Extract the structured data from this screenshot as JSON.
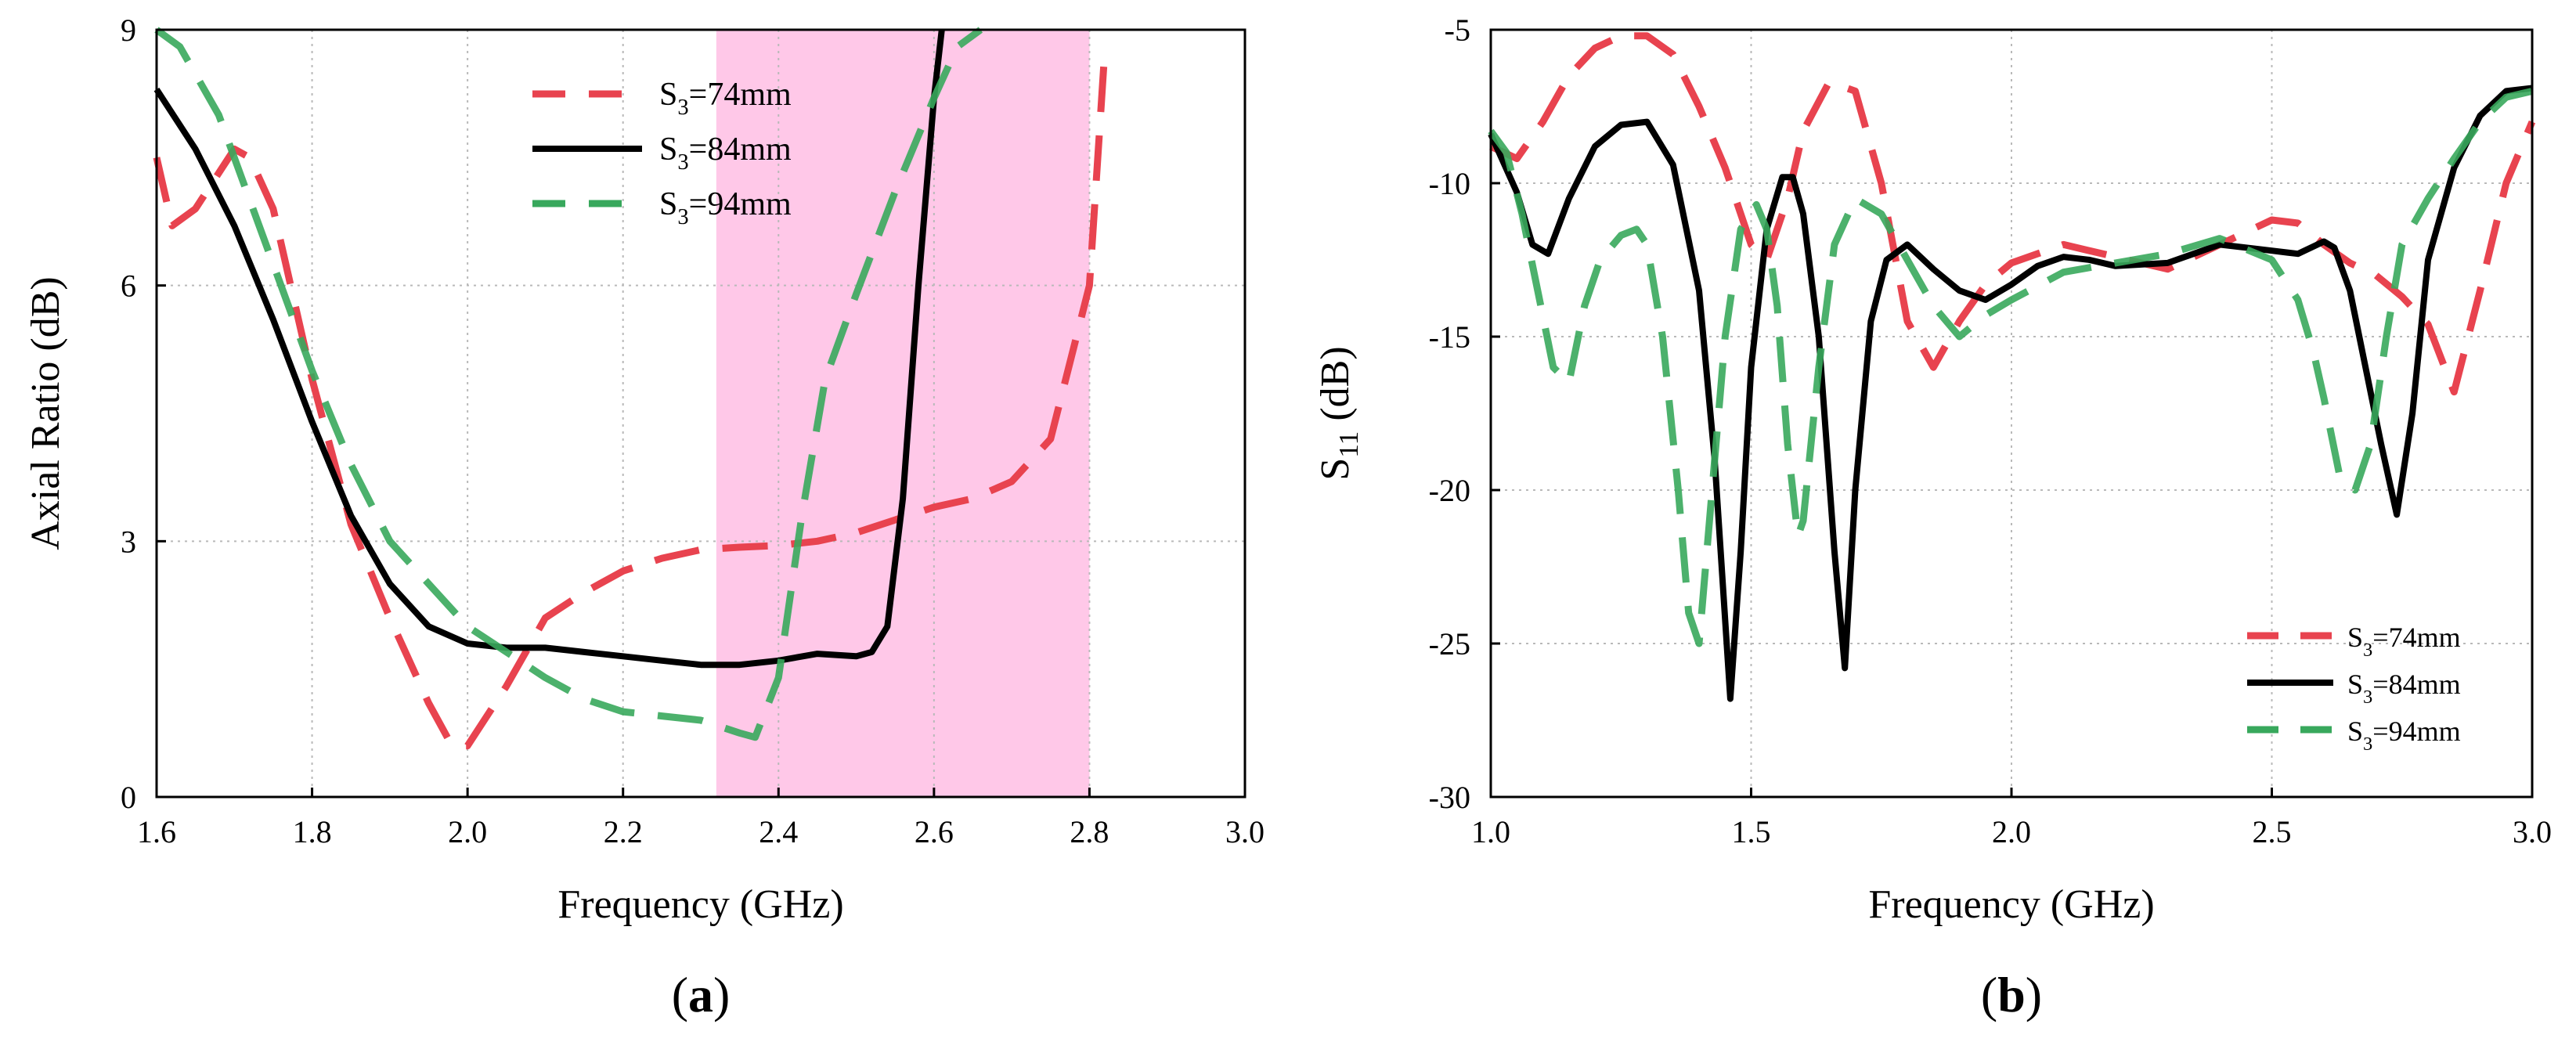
{
  "colors": {
    "red": "#e8434f",
    "black": "#000000",
    "green": "#38a85c",
    "band": "#ffc8e8"
  },
  "chart_data": [
    {
      "type": "line",
      "panel_label": "a",
      "xlabel": "Frequency (GHz)",
      "ylabel": "Axial Ratio (dB)",
      "xlim": [
        1.6,
        3.0
      ],
      "ylim": [
        0,
        9
      ],
      "xticks": [
        "1.6",
        "1.8",
        "2.0",
        "2.2",
        "2.4",
        "2.6",
        "2.8",
        "3.0"
      ],
      "yticks": [
        "0",
        "3",
        "6",
        "9"
      ],
      "grid": true,
      "legend_position": "top-center",
      "highlight_band": {
        "x0": 2.32,
        "x1": 2.8
      },
      "series": [
        {
          "name": "S3=74mm",
          "sub": "3",
          "prefix": "S",
          "suffix": "=74mm",
          "style": "dashed",
          "color": "red",
          "x": [
            1.6,
            1.62,
            1.65,
            1.7,
            1.72,
            1.75,
            1.8,
            1.85,
            1.9,
            1.95,
            1.98,
            2.0,
            2.05,
            2.1,
            2.15,
            2.2,
            2.25,
            2.3,
            2.35,
            2.4,
            2.45,
            2.5,
            2.55,
            2.6,
            2.65,
            2.7,
            2.75,
            2.8,
            2.82
          ],
          "y": [
            7.5,
            6.7,
            6.9,
            7.6,
            7.5,
            6.9,
            4.9,
            3.2,
            2.1,
            1.1,
            0.6,
            0.6,
            1.3,
            2.1,
            2.4,
            2.65,
            2.8,
            2.9,
            2.93,
            2.95,
            3.0,
            3.1,
            3.25,
            3.4,
            3.5,
            3.7,
            4.2,
            6.0,
            8.8
          ]
        },
        {
          "name": "S3=84mm",
          "sub": "3",
          "prefix": "S",
          "suffix": "=84mm",
          "style": "solid",
          "color": "black",
          "x": [
            1.6,
            1.65,
            1.7,
            1.75,
            1.8,
            1.85,
            1.9,
            1.95,
            2.0,
            2.05,
            2.1,
            2.15,
            2.2,
            2.25,
            2.3,
            2.35,
            2.4,
            2.45,
            2.5,
            2.52,
            2.54,
            2.56,
            2.58,
            2.6,
            2.61
          ],
          "y": [
            8.3,
            7.6,
            6.7,
            5.6,
            4.4,
            3.3,
            2.5,
            2.0,
            1.8,
            1.75,
            1.75,
            1.7,
            1.65,
            1.6,
            1.55,
            1.55,
            1.6,
            1.68,
            1.65,
            1.7,
            2.0,
            3.5,
            6.0,
            8.2,
            9.0
          ]
        },
        {
          "name": "S3=94mm",
          "sub": "3",
          "prefix": "S",
          "suffix": "=94mm",
          "style": "dashed",
          "color": "green",
          "x": [
            1.6,
            1.63,
            1.68,
            1.72,
            1.76,
            1.8,
            1.85,
            1.9,
            1.95,
            2.0,
            2.05,
            2.1,
            2.15,
            2.2,
            2.25,
            2.3,
            2.35,
            2.37,
            2.4,
            2.43,
            2.46,
            2.5,
            2.55,
            2.6,
            2.63,
            2.66
          ],
          "y": [
            9.0,
            8.8,
            8.0,
            7.0,
            6.0,
            5.0,
            3.9,
            3.0,
            2.5,
            2.0,
            1.7,
            1.4,
            1.15,
            1.0,
            0.95,
            0.9,
            0.75,
            0.7,
            1.4,
            3.3,
            4.9,
            5.9,
            7.1,
            8.2,
            8.8,
            9.0
          ]
        }
      ]
    },
    {
      "type": "line",
      "panel_label": "b",
      "xlabel": "Frequency (GHz)",
      "ylabel_prefix": "S",
      "ylabel_sub": "11",
      "ylabel_suffix": " (dB)",
      "xlim": [
        1.0,
        3.0
      ],
      "ylim": [
        -30,
        -5
      ],
      "xticks": [
        "1.0",
        "1.5",
        "2.0",
        "2.5",
        "3.0"
      ],
      "yticks": [
        "-30",
        "-25",
        "-20",
        "-15",
        "-10",
        "-5"
      ],
      "grid": true,
      "legend_position": "bottom-right",
      "series": [
        {
          "name": "S3=74mm",
          "sub": "3",
          "prefix": "S",
          "suffix": "=74mm",
          "style": "dashed",
          "color": "red",
          "x": [
            1.0,
            1.05,
            1.1,
            1.15,
            1.2,
            1.25,
            1.3,
            1.35,
            1.4,
            1.45,
            1.5,
            1.53,
            1.57,
            1.6,
            1.65,
            1.7,
            1.75,
            1.8,
            1.85,
            1.9,
            1.95,
            2.0,
            2.1,
            2.2,
            2.3,
            2.4,
            2.5,
            2.55,
            2.6,
            2.65,
            2.7,
            2.75,
            2.8,
            2.85,
            2.9,
            2.95,
            3.0
          ],
          "y": [
            -8.8,
            -9.2,
            -8.0,
            -6.5,
            -5.6,
            -5.2,
            -5.2,
            -5.8,
            -7.5,
            -9.5,
            -12.0,
            -12.5,
            -10.5,
            -8.3,
            -6.7,
            -7.0,
            -10.0,
            -14.5,
            -16.0,
            -14.5,
            -13.3,
            -12.6,
            -12.0,
            -12.4,
            -12.8,
            -12.0,
            -11.2,
            -11.3,
            -12.0,
            -12.6,
            -13.0,
            -13.7,
            -14.6,
            -16.8,
            -13.5,
            -10.0,
            -8.0
          ]
        },
        {
          "name": "S3=84mm",
          "sub": "3",
          "prefix": "S",
          "suffix": "=84mm",
          "style": "solid",
          "color": "black",
          "x": [
            1.0,
            1.05,
            1.08,
            1.11,
            1.15,
            1.2,
            1.25,
            1.3,
            1.35,
            1.4,
            1.43,
            1.46,
            1.48,
            1.5,
            1.53,
            1.56,
            1.58,
            1.6,
            1.63,
            1.66,
            1.68,
            1.7,
            1.73,
            1.76,
            1.8,
            1.85,
            1.9,
            1.95,
            2.0,
            2.05,
            2.1,
            2.15,
            2.2,
            2.3,
            2.4,
            2.5,
            2.55,
            2.6,
            2.62,
            2.65,
            2.68,
            2.71,
            2.74,
            2.77,
            2.8,
            2.85,
            2.9,
            2.95,
            3.0
          ],
          "y": [
            -8.4,
            -10.3,
            -12.0,
            -12.3,
            -10.5,
            -8.8,
            -8.1,
            -8.0,
            -9.4,
            -13.5,
            -19.0,
            -26.8,
            -22.0,
            -16.0,
            -11.5,
            -9.8,
            -9.8,
            -11.0,
            -15.0,
            -22.0,
            -25.8,
            -20.0,
            -14.5,
            -12.5,
            -12.0,
            -12.8,
            -13.5,
            -13.8,
            -13.3,
            -12.7,
            -12.4,
            -12.5,
            -12.7,
            -12.6,
            -12.0,
            -12.2,
            -12.3,
            -11.9,
            -12.1,
            -13.5,
            -16.0,
            -18.5,
            -20.8,
            -17.5,
            -12.5,
            -9.5,
            -7.8,
            -7.0,
            -6.9
          ]
        },
        {
          "name": "S3=94mm",
          "sub": "3",
          "prefix": "S",
          "suffix": "=94mm",
          "style": "dashed",
          "color": "green",
          "x": [
            1.0,
            1.03,
            1.06,
            1.09,
            1.12,
            1.15,
            1.18,
            1.21,
            1.25,
            1.28,
            1.3,
            1.33,
            1.36,
            1.38,
            1.4,
            1.42,
            1.45,
            1.48,
            1.51,
            1.53,
            1.55,
            1.57,
            1.59,
            1.6,
            1.63,
            1.66,
            1.7,
            1.75,
            1.8,
            1.85,
            1.9,
            1.95,
            2.0,
            2.1,
            2.2,
            2.3,
            2.4,
            2.5,
            2.55,
            2.58,
            2.6,
            2.63,
            2.66,
            2.69,
            2.72,
            2.75,
            2.8,
            2.85,
            2.9,
            2.95,
            3.0
          ],
          "y": [
            -8.3,
            -9.0,
            -11.0,
            -13.5,
            -16.0,
            -16.5,
            -14.0,
            -12.5,
            -11.7,
            -11.5,
            -12.0,
            -15.0,
            -20.0,
            -24.0,
            -25.0,
            -21.0,
            -15.0,
            -11.5,
            -10.7,
            -11.5,
            -14.0,
            -18.5,
            -21.5,
            -21.0,
            -16.0,
            -12.0,
            -10.5,
            -11.0,
            -12.5,
            -14.0,
            -15.0,
            -14.3,
            -13.8,
            -12.9,
            -12.6,
            -12.3,
            -11.8,
            -12.5,
            -13.8,
            -15.5,
            -17.0,
            -19.5,
            -20.0,
            -18.5,
            -15.0,
            -12.0,
            -10.5,
            -9.2,
            -8.0,
            -7.2,
            -7.0
          ]
        }
      ]
    }
  ]
}
